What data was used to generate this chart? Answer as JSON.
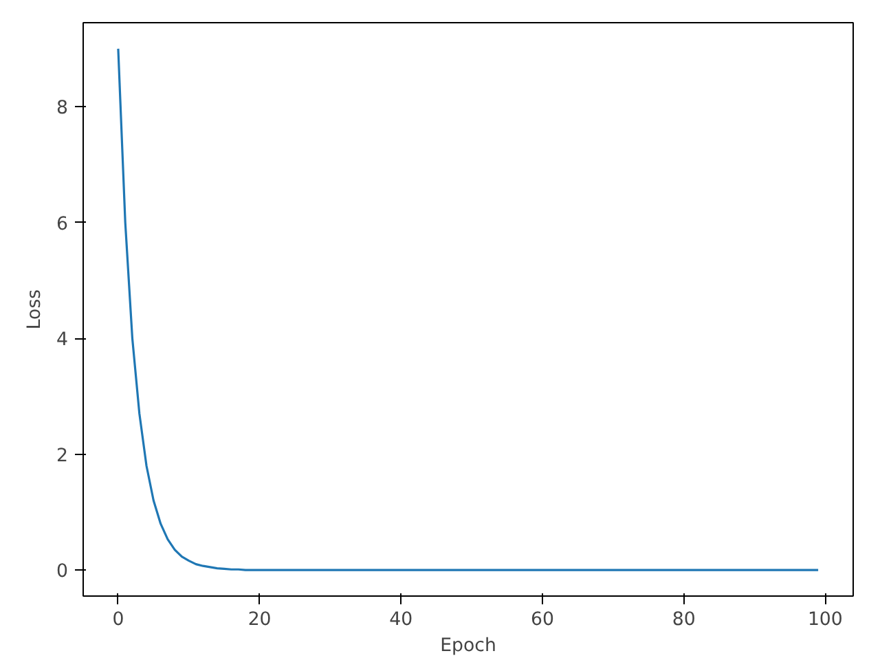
{
  "chart_data": {
    "type": "line",
    "xlabel": "Epoch",
    "ylabel": "Loss",
    "x": [
      0,
      1,
      2,
      3,
      4,
      5,
      6,
      7,
      8,
      9,
      10,
      11,
      12,
      13,
      14,
      15,
      16,
      17,
      18,
      20,
      25,
      30,
      40,
      60,
      80,
      99
    ],
    "series": [
      {
        "color": "#1f77b4",
        "values": [
          9,
          6,
          4,
          2.7,
          1.8,
          1.2,
          0.8,
          0.53,
          0.35,
          0.23,
          0.16,
          0.1,
          0.07,
          0.05,
          0.03,
          0.02,
          0.01,
          0.01,
          0,
          0,
          0,
          0,
          0,
          0,
          0,
          0
        ]
      }
    ],
    "xlim": [
      -4.95,
      103.95
    ],
    "ylim": [
      -0.45,
      9.45
    ],
    "xticks": [
      0,
      20,
      40,
      60,
      80,
      100
    ],
    "yticks": [
      0,
      2,
      4,
      6,
      8
    ],
    "grid": false,
    "marker": "none",
    "line_style": "solid"
  }
}
